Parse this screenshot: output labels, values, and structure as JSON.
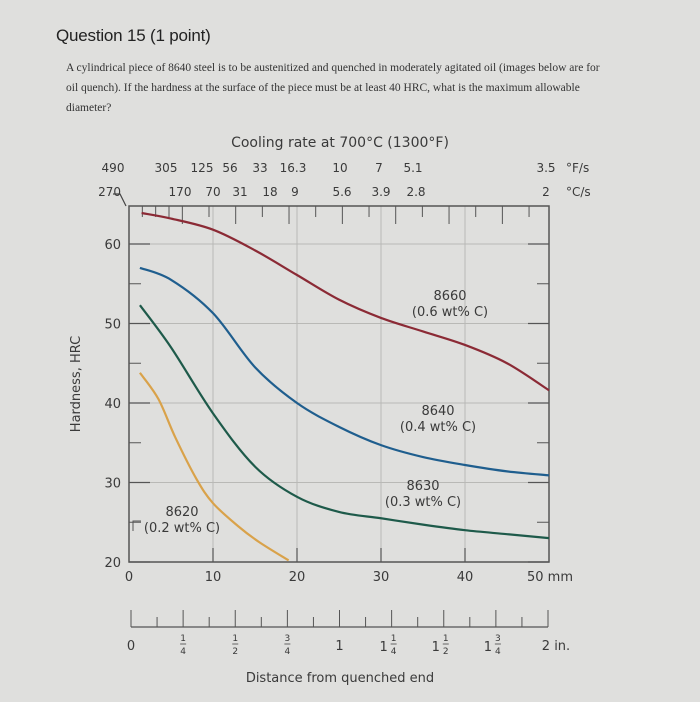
{
  "question": {
    "title": "Question 15",
    "points": "(1 point)",
    "text": "A cylindrical piece of 8640 steel is to be austenitized and quenched in moderately agitated oil (images below are for oil quench). If the hardness at the surface of the piece must be at least 40 HRC, what is the maximum allowable diameter?"
  },
  "chart_data": {
    "type": "line",
    "title": "Cooling rate at 700°C (1300°F)",
    "xlabel": "Distance from quenched end",
    "ylabel": "Hardness, HRC",
    "xlim": [
      0,
      50
    ],
    "ylim": [
      20,
      65
    ],
    "x_unit": "mm",
    "x_ticks_mm": [
      "0",
      "10",
      "20",
      "30",
      "40",
      "50 mm"
    ],
    "x_ticks_in": [
      "0",
      "1/4",
      "1/2",
      "3/4",
      "1",
      "1 1/4",
      "1 1/2",
      "1 3/4",
      "2 in."
    ],
    "y_ticks": [
      "20",
      "30",
      "40",
      "50",
      "60"
    ],
    "grid": true,
    "cooling_rate_F_per_s": [
      "490",
      "305",
      "125",
      "56",
      "33",
      "16.3",
      "10",
      "7",
      "5.1",
      "3.5"
    ],
    "cooling_rate_F_unit": "°F/s",
    "cooling_rate_C_per_s": [
      "270",
      "170",
      "70",
      "31",
      "18",
      "9",
      "5.6",
      "3.9",
      "2.8",
      "2"
    ],
    "cooling_rate_C_unit": "°C/s",
    "series": [
      {
        "name": "8660",
        "label": "(0.6 wt% C)",
        "color": "#8b2a35",
        "x": [
          1.5,
          5,
          10,
          15,
          20,
          25,
          30,
          35,
          40,
          45,
          50
        ],
        "y": [
          63.9,
          63.2,
          61.8,
          59.2,
          56.1,
          53.0,
          50.7,
          49.0,
          47.3,
          45.0,
          41.6
        ]
      },
      {
        "name": "8640",
        "label": "(0.4 wt% C)",
        "color": "#1f5e8e",
        "x": [
          1.3,
          5,
          10,
          15,
          20,
          25,
          30,
          35,
          40,
          45,
          50
        ],
        "y": [
          57.0,
          55.5,
          51.3,
          44.5,
          40.0,
          37.0,
          34.7,
          33.2,
          32.2,
          31.4,
          30.9
        ]
      },
      {
        "name": "8630",
        "label": "(0.3 wt% C)",
        "color": "#1e5a4a",
        "x": [
          1.3,
          5,
          10,
          15,
          20,
          25,
          30,
          35,
          40,
          45,
          50
        ],
        "y": [
          52.3,
          47.0,
          38.7,
          32.0,
          28.2,
          26.3,
          25.5,
          24.7,
          24.0,
          23.5,
          23.0
        ]
      },
      {
        "name": "8620",
        "label": "(0.2 wt% C)",
        "color": "#d9a24a",
        "x": [
          1.3,
          3.5,
          5.5,
          8,
          10,
          13,
          15.5,
          19
        ],
        "y": [
          43.8,
          40.5,
          35.7,
          30.5,
          27.4,
          24.5,
          22.5,
          20.2
        ]
      }
    ]
  }
}
